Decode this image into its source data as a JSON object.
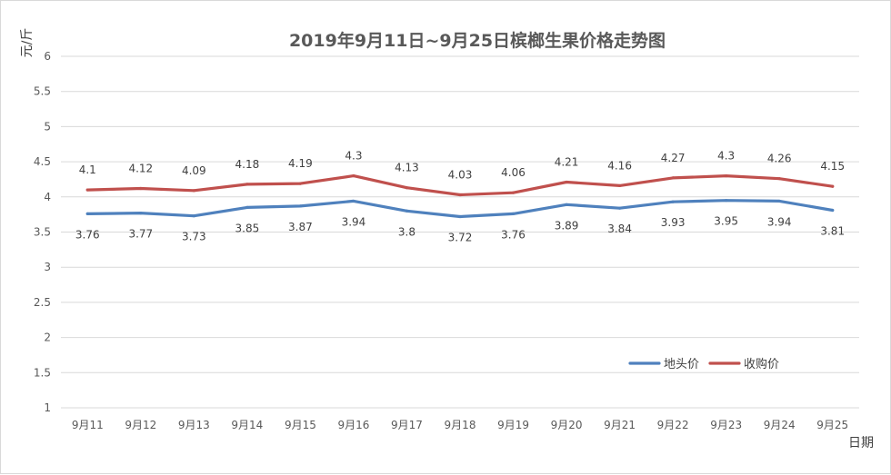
{
  "chart_data": {
    "type": "line",
    "title": "2019年9月11日~9月25日槟榔生果价格走势图",
    "xlabel": "日期",
    "ylabel": "元/斤",
    "categories": [
      "9月11",
      "9月12",
      "9月13",
      "9月14",
      "9月15",
      "9月16",
      "9月17",
      "9月18",
      "9月19",
      "9月20",
      "9月21",
      "9月22",
      "9月23",
      "9月24",
      "9月25"
    ],
    "yticks": [
      "1",
      "1.5",
      "2",
      "2.5",
      "3",
      "3.5",
      "4",
      "4.5",
      "5",
      "5.5",
      "6"
    ],
    "ylim": [
      1,
      6
    ],
    "grid": true,
    "legend_position": "bottom-right",
    "series": [
      {
        "name": "地头价",
        "color": "#4f81bd",
        "values": [
          3.76,
          3.77,
          3.73,
          3.85,
          3.87,
          3.94,
          3.8,
          3.72,
          3.76,
          3.89,
          3.84,
          3.93,
          3.95,
          3.94,
          3.81
        ],
        "labels": [
          "3.76",
          "3.77",
          "3.73",
          "3.85",
          "3.87",
          "3.94",
          "3.8",
          "3.72",
          "3.76",
          "3.89",
          "3.84",
          "3.93",
          "3.95",
          "3.94",
          "3.81"
        ],
        "label_position": "below"
      },
      {
        "name": "收购价",
        "color": "#c0504d",
        "values": [
          4.1,
          4.12,
          4.09,
          4.18,
          4.19,
          4.3,
          4.13,
          4.03,
          4.06,
          4.21,
          4.16,
          4.27,
          4.3,
          4.26,
          4.15
        ],
        "labels": [
          "4.1",
          "4.12",
          "4.09",
          "4.18",
          "4.19",
          "4.3",
          "4.13",
          "4.03",
          "4.06",
          "4.21",
          "4.16",
          "4.27",
          "4.3",
          "4.26",
          "4.15"
        ],
        "label_position": "above"
      }
    ]
  }
}
